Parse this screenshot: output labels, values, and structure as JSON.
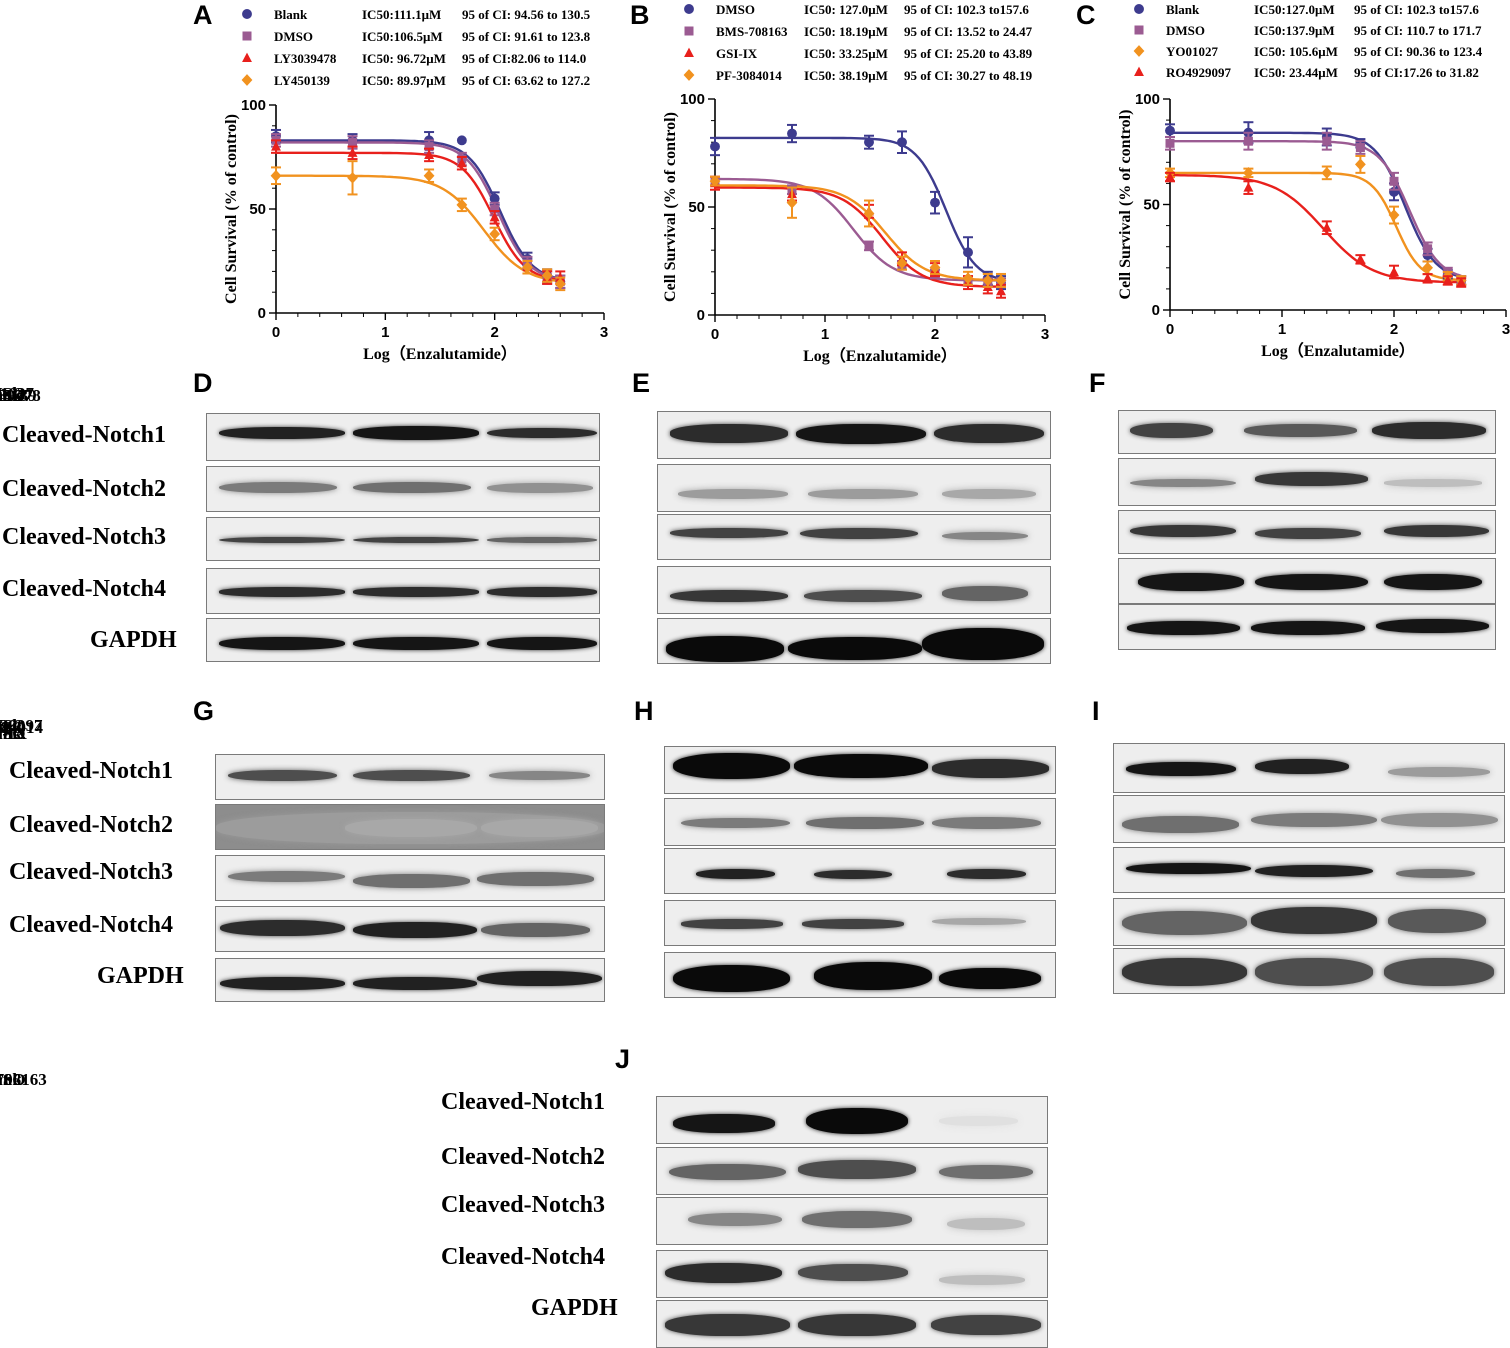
{
  "chart_data": [
    {
      "panel": "A",
      "type": "line",
      "ylabel": "Cell Survival (% of control)",
      "xlabel": "Log（Enzalutamide）",
      "xlim": [
        0,
        3
      ],
      "ylim": [
        0,
        100
      ],
      "xticks": [
        "0",
        "1",
        "2",
        "3"
      ],
      "yticks": [
        "0",
        "50",
        "100"
      ],
      "series": [
        {
          "name": "Blank",
          "marker": "circle",
          "color": "#3d3b8e",
          "ic50": "IC50:111.1μM",
          "ci": "95 of CI: 94.56 to 130.5",
          "top": 83,
          "bottom": 15,
          "logic50": 2.05,
          "hill": 3.0,
          "points": [
            [
              0,
              85
            ],
            [
              0.7,
              83
            ],
            [
              1.4,
              83
            ],
            [
              1.7,
              83
            ],
            [
              2.0,
              55
            ],
            [
              2.3,
              26
            ],
            [
              2.48,
              18
            ],
            [
              2.6,
              15
            ]
          ],
          "err": [
            3,
            3,
            4,
            0,
            3,
            3,
            3,
            3
          ]
        },
        {
          "name": "DMSO",
          "marker": "square",
          "color": "#9b5b92",
          "ic50": "IC50:106.5μM",
          "ci": "95 of CI: 91.61 to 123.8",
          "top": 82,
          "bottom": 15,
          "logic50": 2.03,
          "hill": 3.0,
          "points": [
            [
              0,
              83
            ],
            [
              0.7,
              82
            ],
            [
              1.4,
              80
            ],
            [
              1.7,
              74
            ],
            [
              2.0,
              50
            ],
            [
              2.3,
              24
            ],
            [
              2.48,
              17
            ],
            [
              2.6,
              15
            ]
          ],
          "err": [
            3,
            3,
            3,
            3,
            3,
            3,
            3,
            3
          ]
        },
        {
          "name": "LY3039478",
          "marker": "triangle",
          "color": "#e8201c",
          "ic50": "IC50: 96.72μM",
          "ci": "95 of CI:82.06 to 114.0",
          "top": 77,
          "bottom": 15,
          "logic50": 1.99,
          "hill": 3.0,
          "points": [
            [
              0,
              80
            ],
            [
              0.7,
              77
            ],
            [
              1.4,
              76
            ],
            [
              1.7,
              72
            ],
            [
              2.0,
              46
            ],
            [
              2.3,
              22
            ],
            [
              2.48,
              17
            ],
            [
              2.6,
              17
            ]
          ],
          "err": [
            3,
            3,
            3,
            3,
            3,
            3,
            3,
            3
          ]
        },
        {
          "name": "LY450139",
          "marker": "diamond",
          "color": "#f1921f",
          "ic50": "IC50: 89.97μM",
          "ci": "95 of CI: 63.62 to 127.2",
          "top": 66,
          "bottom": 14,
          "logic50": 1.9,
          "hill": 2.3,
          "points": [
            [
              0,
              66
            ],
            [
              0.7,
              65
            ],
            [
              1.4,
              66
            ],
            [
              1.7,
              52
            ],
            [
              2.0,
              38
            ],
            [
              2.3,
              22
            ],
            [
              2.48,
              18
            ],
            [
              2.6,
              14
            ]
          ],
          "err": [
            4,
            8,
            3,
            3,
            3,
            3,
            3,
            3
          ]
        }
      ]
    },
    {
      "panel": "B",
      "type": "line",
      "ylabel": "Cell Survival (% of control)",
      "xlabel": "Log（Enzalutamide）",
      "xlim": [
        0,
        3
      ],
      "ylim": [
        0,
        100
      ],
      "xticks": [
        "0",
        "1",
        "2",
        "3"
      ],
      "yticks": [
        "0",
        "50",
        "100"
      ],
      "series": [
        {
          "name": "DMSO",
          "marker": "circle",
          "color": "#3d3b8e",
          "ic50": "IC50: 127.0μM",
          "ci": "95 of CI: 102.3 to157.6",
          "top": 82,
          "bottom": 15,
          "logic50": 2.1,
          "hill": 3.2,
          "points": [
            [
              0,
              78
            ],
            [
              0.7,
              84
            ],
            [
              1.4,
              80
            ],
            [
              1.7,
              80
            ],
            [
              2.0,
              52
            ],
            [
              2.3,
              29
            ],
            [
              2.48,
              17
            ],
            [
              2.6,
              15
            ]
          ],
          "err": [
            4,
            4,
            3,
            5,
            5,
            7,
            3,
            3
          ]
        },
        {
          "name": "BMS-708163",
          "marker": "square",
          "color": "#9b5b92",
          "ic50": "IC50: 18.19μM",
          "ci": "95 of CI: 13.52 to 24.47",
          "top": 63,
          "bottom": 16,
          "logic50": 1.26,
          "hill": 2.4,
          "points": [
            [
              0,
              62
            ],
            [
              0.7,
              58
            ],
            [
              1.4,
              32
            ],
            [
              1.7,
              23
            ],
            [
              2.0,
              19
            ],
            [
              2.3,
              16
            ],
            [
              2.48,
              15
            ],
            [
              2.6,
              15
            ]
          ],
          "err": [
            2,
            2,
            2,
            2,
            2,
            2,
            2,
            2
          ]
        },
        {
          "name": "GSI-IX",
          "marker": "triangle",
          "color": "#e8201c",
          "ic50": "IC50: 33.25μM",
          "ci": "95 of CI: 25.20 to 43.89",
          "top": 59,
          "bottom": 13,
          "logic50": 1.52,
          "hill": 2.4,
          "points": [
            [
              0,
              61
            ],
            [
              0.7,
              56
            ],
            [
              1.4,
              48
            ],
            [
              1.7,
              26
            ],
            [
              2.0,
              21
            ],
            [
              2.3,
              15
            ],
            [
              2.48,
              13
            ],
            [
              2.6,
              11
            ]
          ],
          "err": [
            3,
            3,
            3,
            3,
            3,
            3,
            3,
            3
          ]
        },
        {
          "name": "PF-3084014",
          "marker": "diamond",
          "color": "#f1921f",
          "ic50": "IC50: 38.19μM",
          "ci": "95 of CI: 30.27 to 48.19",
          "top": 60,
          "bottom": 16,
          "logic50": 1.55,
          "hill": 2.4,
          "points": [
            [
              0,
              62
            ],
            [
              0.7,
              52
            ],
            [
              1.4,
              47
            ],
            [
              1.7,
              24
            ],
            [
              2.0,
              22
            ],
            [
              2.3,
              17
            ],
            [
              2.48,
              16
            ],
            [
              2.6,
              16
            ]
          ],
          "err": [
            2,
            7,
            6,
            3,
            3,
            3,
            3,
            3
          ]
        }
      ]
    },
    {
      "panel": "C",
      "type": "line",
      "ylabel": "Cell Survival (% of control)",
      "xlabel": "Log（Enzalutamide）",
      "xlim": [
        0,
        3
      ],
      "ylim": [
        0,
        100
      ],
      "xticks": [
        "0",
        "1",
        "2",
        "3"
      ],
      "yticks": [
        "0",
        "50",
        "100"
      ],
      "series": [
        {
          "name": "Blank",
          "marker": "circle",
          "color": "#3d3b8e",
          "ic50": "IC50:127.0μM",
          "ci": "95 of CI: 102.3 to157.6",
          "top": 84,
          "bottom": 14,
          "logic50": 2.1,
          "hill": 3.2,
          "points": [
            [
              0,
              85
            ],
            [
              0.7,
              84
            ],
            [
              1.4,
              82
            ],
            [
              1.7,
              79
            ],
            [
              2.0,
              56
            ],
            [
              2.3,
              26
            ],
            [
              2.48,
              17
            ],
            [
              2.6,
              14
            ]
          ],
          "err": [
            3,
            5,
            4,
            2,
            4,
            3,
            2,
            2
          ]
        },
        {
          "name": "DMSO",
          "marker": "square",
          "color": "#9b5b92",
          "ic50": "IC50:137.9μM",
          "ci": "95 of CI: 110.7 to 171.7",
          "top": 80,
          "bottom": 14,
          "logic50": 2.14,
          "hill": 3.2,
          "points": [
            [
              0,
              79
            ],
            [
              0.7,
              80
            ],
            [
              1.4,
              80
            ],
            [
              1.7,
              77
            ],
            [
              2.0,
              61
            ],
            [
              2.3,
              29
            ],
            [
              2.48,
              18
            ],
            [
              2.6,
              14
            ]
          ],
          "err": [
            3,
            4,
            4,
            3,
            4,
            3,
            2,
            2
          ]
        },
        {
          "name": "YO01027",
          "marker": "diamond",
          "color": "#f1921f",
          "ic50": "IC50: 105.6μM",
          "ci": "95 of CI: 90.36 to 123.4",
          "top": 65,
          "bottom": 14,
          "logic50": 2.02,
          "hill": 4.0,
          "points": [
            [
              0,
              65
            ],
            [
              0.7,
              65
            ],
            [
              1.4,
              65
            ],
            [
              1.7,
              69
            ],
            [
              2.0,
              45
            ],
            [
              2.3,
              20
            ],
            [
              2.48,
              16
            ],
            [
              2.6,
              14
            ]
          ],
          "err": [
            2,
            2,
            3,
            4,
            4,
            3,
            2,
            2
          ]
        },
        {
          "name": "RO4929097",
          "marker": "triangle",
          "color": "#e8201c",
          "ic50": "IC50: 23.44μM",
          "ci": "95 of CI:17.26 to 31.82",
          "top": 64,
          "bottom": 13,
          "logic50": 1.37,
          "hill": 2.0,
          "points": [
            [
              0,
              63
            ],
            [
              0.7,
              58
            ],
            [
              1.4,
              39
            ],
            [
              1.7,
              24
            ],
            [
              2.0,
              18
            ],
            [
              2.3,
              15
            ],
            [
              2.48,
              14
            ],
            [
              2.6,
              13
            ]
          ],
          "err": [
            2,
            3,
            3,
            2,
            3,
            2,
            2,
            2
          ]
        }
      ]
    }
  ],
  "blots": [
    {
      "panel": "D",
      "lanes": [
        "Blank",
        "DMSO",
        "LY3039478"
      ],
      "rows": [
        "Cleaved-Notch1",
        "Cleaved-Notch2",
        "Cleaved-Notch3",
        "Cleaved-Notch4",
        "GAPDH"
      ]
    },
    {
      "panel": "E",
      "lanes": [
        "Blank",
        "DMSO",
        "LY450139"
      ],
      "rows": []
    },
    {
      "panel": "F",
      "lanes": [
        "Blank",
        "DMSO",
        "YO01027"
      ],
      "rows": []
    },
    {
      "panel": "G",
      "lanes": [
        "Blank",
        "DMSO",
        "GSI-IX"
      ],
      "rows": [
        "Cleaved-Notch1",
        "Cleaved-Notch2",
        "Cleaved-Notch3",
        "Cleaved-Notch4",
        "GAPDH"
      ]
    },
    {
      "panel": "H",
      "lanes": [
        "Blank",
        "DMSO",
        "PF-3084014"
      ],
      "rows": []
    },
    {
      "panel": "I",
      "lanes": [
        "Blank",
        "DMSO",
        "RO4929097"
      ],
      "rows": []
    },
    {
      "panel": "J",
      "lanes": [
        "Blank",
        "DMSO",
        "BMS-708163"
      ],
      "rows": [
        "Cleaved-Notch1",
        "Cleaved-Notch2",
        "Cleaved-Notch3",
        "Cleaved-Notch4",
        "GAPDH"
      ]
    }
  ]
}
